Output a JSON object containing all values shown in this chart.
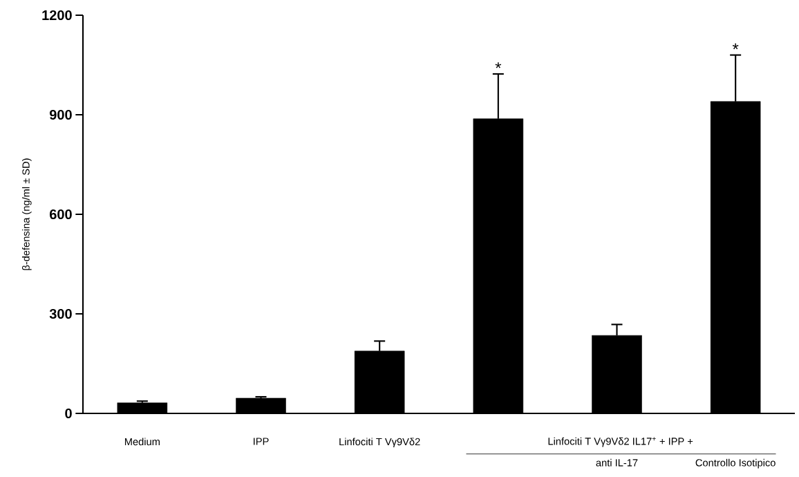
{
  "chart_data": {
    "type": "bar",
    "ylabel": "β-defensina (ng/ml ± SD)",
    "categories": [
      "Medium",
      "IPP",
      "Linfociti T Vγ9Vδ2",
      null,
      "anti IL-17",
      "Controllo Isotipico"
    ],
    "values": [
      32,
      46,
      188,
      888,
      235,
      940
    ],
    "errors": [
      5,
      4,
      30,
      135,
      33,
      140
    ],
    "value_labels": [
      null,
      null,
      null,
      "*",
      null,
      "*"
    ],
    "color": "#000000",
    "ylim": [
      0,
      1200
    ],
    "yticks": [
      0,
      300,
      600,
      900,
      1200
    ],
    "annotations": [
      "Linfociti T Vγ9Vδ2 IL17$^{+}$ + IPP +"
    ],
    "grid": false
  }
}
